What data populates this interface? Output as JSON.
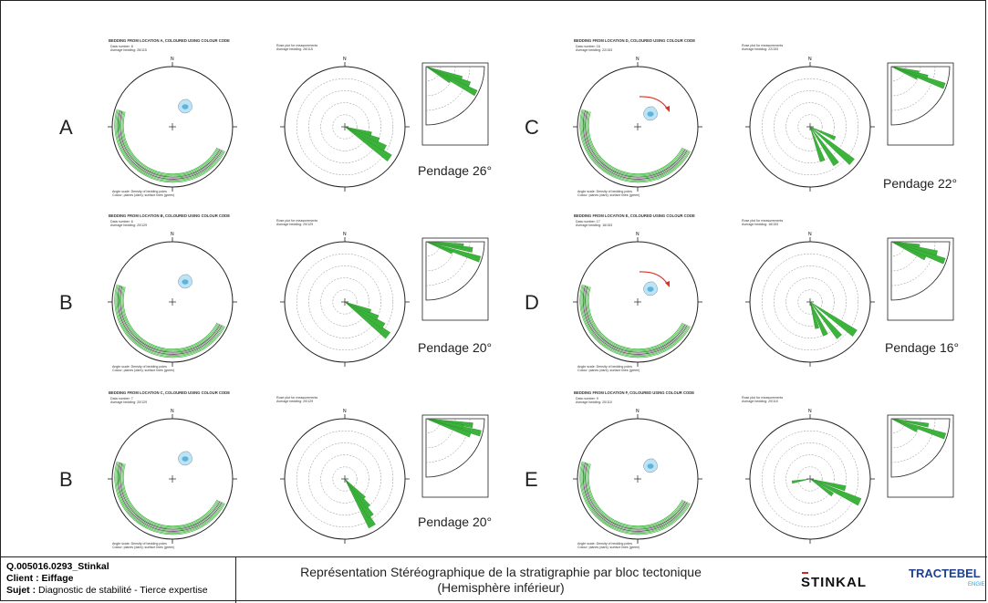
{
  "panels": [
    {
      "letter": "A",
      "dip": "Pendage 26°",
      "title": "BEDDING FROM LOCATION A, COLOURED USING COLOUR CODE",
      "info1": "Data number: 8",
      "info2": "Average bedding: 26/115",
      "rose1": "Rose plot for measurements",
      "rose2": "Average bedding: 26/115",
      "note1": "Angle scale: Density of bedding poles",
      "note2": "Colour: planes (dark); surface lines (green)"
    },
    {
      "letter": "B",
      "dip": "Pendage 20°",
      "title": "BEDDING FROM LOCATION B, COLOURED USING COLOUR CODE",
      "info1": "Data number: 6",
      "info2": "Average bedding: 20/129",
      "rose1": "Rose plot for measurements",
      "rose2": "Average bedding: 20/129",
      "note1": "Angle scale: Density of bedding poles",
      "note2": "Colour: planes (dark); surface lines (green)"
    },
    {
      "letter": "B",
      "dip": "Pendage 20°",
      "title": "BEDDING FROM LOCATION C, COLOURED USING COLOUR CODE",
      "info1": "Data number: 7",
      "info2": "Average bedding: 20/129",
      "rose1": "Rose plot for measurements",
      "rose2": "Average bedding: 20/129",
      "note1": "Angle scale: Density of bedding poles",
      "note2": "Colour: planes (dark); surface lines (green)"
    },
    {
      "letter": "C",
      "dip": "Pendage 22°",
      "title": "BEDDING FROM LOCATION D, COLOURED USING COLOUR CODE",
      "info1": "Data number: 16",
      "info2": "Average bedding: 22/153",
      "rose1": "Rose plot for measurements",
      "rose2": "Average bedding: 22/153",
      "note1": "Angle scale: Density of bedding poles",
      "note2": "Colour: planes (dark); surface lines (green)"
    },
    {
      "letter": "D",
      "dip": "Pendage 16°",
      "title": "BEDDING FROM LOCATION E, COLOURED USING COLOUR CODE",
      "info1": "Data number: 17",
      "info2": "Average bedding: 16/153",
      "rose1": "Rose plot for measurements",
      "rose2": "Average bedding: 16/153",
      "note1": "Angle scale: Density of bedding poles",
      "note2": "Colour: planes (dark); surface lines (green)"
    },
    {
      "letter": "E",
      "dip": "",
      "title": "BEDDING FROM LOCATION F, COLOURED USING COLOUR CODE",
      "info1": "Data number: 9",
      "info2": "Average bedding: 20/110",
      "rose1": "Rose plot for measurements",
      "rose2": "Average bedding: 20/110",
      "note1": "Angle scale: Density of bedding poles",
      "note2": "Colour: planes (dark); surface lines (green)"
    }
  ],
  "footer": {
    "ref": "Q.005016.0293_Stinkal",
    "client_label": "Client :",
    "client_value": "Eiffage",
    "subject_label": "Sujet :",
    "subject_value": "Diagnostic de stabilité - Tierce expertise",
    "title_line1": "Représentation Stéréographique  de la stratigraphie par bloc tectonique",
    "title_line2": "(Hemisphère inférieur)"
  },
  "logos": {
    "stinkal": "STINKAL",
    "tractebel": "TRACTEBEL",
    "engie": "ENGIE"
  },
  "north_label": "N",
  "colors": {
    "green": "#3cb43c",
    "pole": "#5ab4dc",
    "arrow": "#e03020",
    "line": "#222222"
  }
}
